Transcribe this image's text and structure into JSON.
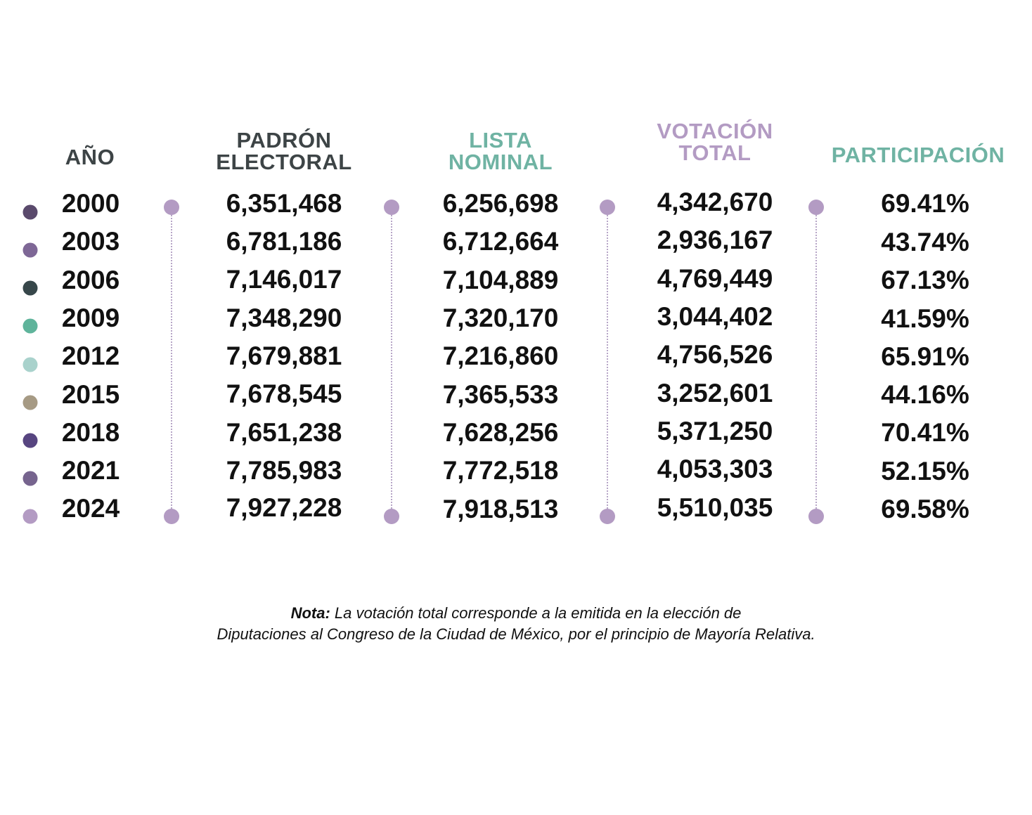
{
  "headers": {
    "year": [
      "AÑO"
    ],
    "padron": [
      "PADRÓN",
      "ELECTORAL"
    ],
    "lista": [
      "LISTA",
      "NOMINAL"
    ],
    "votacion": [
      "VOTACIÓN",
      "TOTAL"
    ],
    "participacion": [
      "PARTICIPACIÓN"
    ]
  },
  "colors": {
    "header_year": "#3d4446",
    "header_padron": "#3d4446",
    "header_lista": "#6fb3a3",
    "header_votacion": "#b39bc3",
    "header_participacion": "#6fb3a3",
    "connector_dot": "#b39bc3",
    "connector_line": "#b7a6c7"
  },
  "rows": [
    {
      "year": "2000",
      "padron": "6,351,468",
      "lista": "6,256,698",
      "votacion": "4,342,670",
      "participacion": "69.41%",
      "dot_color": "#5a4a6c"
    },
    {
      "year": "2003",
      "padron": "6,781,186",
      "lista": "6,712,664",
      "votacion": "2,936,167",
      "participacion": "43.74%",
      "dot_color": "#7e6796"
    },
    {
      "year": "2006",
      "padron": "7,146,017",
      "lista": "7,104,889",
      "votacion": "4,769,449",
      "participacion": "67.13%",
      "dot_color": "#37474a"
    },
    {
      "year": "2009",
      "padron": "7,348,290",
      "lista": "7,320,170",
      "votacion": "3,044,402",
      "participacion": "41.59%",
      "dot_color": "#5fb49b"
    },
    {
      "year": "2012",
      "padron": "7,679,881",
      "lista": "7,216,860",
      "votacion": "4,756,526",
      "participacion": "65.91%",
      "dot_color": "#a9d2cc"
    },
    {
      "year": "2015",
      "padron": "7,678,545",
      "lista": "7,365,533",
      "votacion": "3,252,601",
      "participacion": "44.16%",
      "dot_color": "#a69a84"
    },
    {
      "year": "2018",
      "padron": "7,651,238",
      "lista": "7,628,256",
      "votacion": "5,371,250",
      "participacion": "70.41%",
      "dot_color": "#574580"
    },
    {
      "year": "2021",
      "padron": "7,785,983",
      "lista": "7,772,518",
      "votacion": "4,053,303",
      "participacion": "52.15%",
      "dot_color": "#76648e"
    },
    {
      "year": "2024",
      "padron": "7,927,228",
      "lista": "7,918,513",
      "votacion": "5,510,035",
      "participacion": "69.58%",
      "dot_color": "#b39bc3"
    }
  ],
  "note": {
    "label": "Nota:",
    "line1": "La votación total corresponde a la emitida en la elección de",
    "line2": "Diputaciones al Congreso de la Ciudad de México, por el principio de Mayoría Relativa."
  }
}
